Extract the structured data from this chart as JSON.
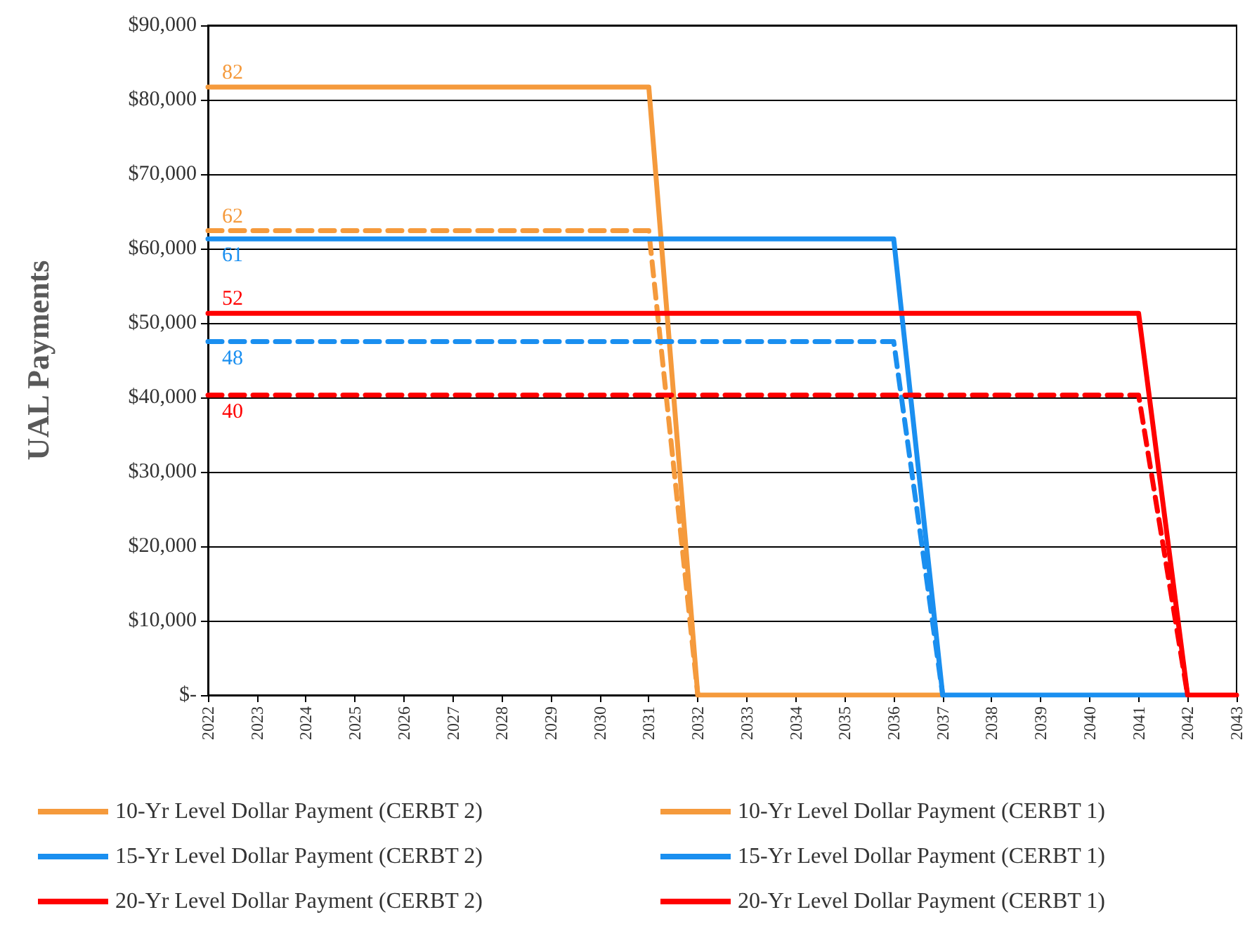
{
  "chart_data": {
    "type": "line",
    "ylabel": "UAL Payments",
    "categories": [
      "2022",
      "2023",
      "2024",
      "2025",
      "2026",
      "2027",
      "2028",
      "2029",
      "2030",
      "2031",
      "2032",
      "2033",
      "2034",
      "2035",
      "2036",
      "2037",
      "2038",
      "2039",
      "2040",
      "2041",
      "2042",
      "2043"
    ],
    "series": [
      {
        "name": "10-Yr Level Dollar Payment (CERBT 2)",
        "color": "#f59a3c",
        "line_style": "solid",
        "values": [
          81700,
          81700,
          81700,
          81700,
          81700,
          81700,
          81700,
          81700,
          81700,
          81700,
          0,
          0,
          0,
          0,
          0,
          0,
          null,
          null,
          null,
          null,
          null,
          null
        ]
      },
      {
        "name": "10-Yr Level Dollar Payment (CERBT 1)",
        "color": "#f59a3c",
        "line_style": "dashed",
        "values": [
          62400,
          62400,
          62400,
          62400,
          62400,
          62400,
          62400,
          62400,
          62400,
          62400,
          0,
          null,
          null,
          null,
          null,
          null,
          null,
          null,
          null,
          null,
          null,
          null
        ]
      },
      {
        "name": "15-Yr Level Dollar Payment (CERBT 2)",
        "color": "#1a8ff0",
        "line_style": "solid",
        "values": [
          61300,
          61300,
          61300,
          61300,
          61300,
          61300,
          61300,
          61300,
          61300,
          61300,
          61300,
          61300,
          61300,
          61300,
          61300,
          0,
          0,
          0,
          0,
          0,
          0,
          null
        ]
      },
      {
        "name": "15-Yr Level Dollar Payment (CERBT 1)",
        "color": "#1a8ff0",
        "line_style": "dashed",
        "values": [
          47500,
          47500,
          47500,
          47500,
          47500,
          47500,
          47500,
          47500,
          47500,
          47500,
          47500,
          47500,
          47500,
          47500,
          47500,
          0,
          null,
          null,
          null,
          null,
          null,
          null
        ]
      },
      {
        "name": "20-Yr Level Dollar Payment (CERBT 2)",
        "color": "#ff0000",
        "line_style": "solid",
        "values": [
          51300,
          51300,
          51300,
          51300,
          51300,
          51300,
          51300,
          51300,
          51300,
          51300,
          51300,
          51300,
          51300,
          51300,
          51300,
          51300,
          51300,
          51300,
          51300,
          51300,
          0,
          0
        ]
      },
      {
        "name": "20-Yr Level Dollar Payment (CERBT 1)",
        "color": "#ff0000",
        "line_style": "dashed",
        "values": [
          40300,
          40300,
          40300,
          40300,
          40300,
          40300,
          40300,
          40300,
          40300,
          40300,
          40300,
          40300,
          40300,
          40300,
          40300,
          40300,
          40300,
          40300,
          40300,
          40300,
          0,
          null
        ]
      }
    ],
    "annotations": [
      {
        "text": "82",
        "x": "2022",
        "y": 81700
      },
      {
        "text": "62",
        "x": "2022",
        "y": 62400
      },
      {
        "text": "61",
        "x": "2022",
        "y": 61300
      },
      {
        "text": "48",
        "x": "2022",
        "y": 47500
      },
      {
        "text": "52",
        "x": "2022",
        "y": 51300
      },
      {
        "text": "40",
        "x": "2022",
        "y": 40300
      }
    ],
    "ylim": [
      0,
      90000
    ],
    "yticks": [
      {
        "value": 0,
        "label": "$-"
      },
      {
        "value": 10000,
        "label": "$10,000"
      },
      {
        "value": 20000,
        "label": "$20,000"
      },
      {
        "value": 30000,
        "label": "$30,000"
      },
      {
        "value": 40000,
        "label": "$40,000"
      },
      {
        "value": 50000,
        "label": "$50,000"
      },
      {
        "value": 60000,
        "label": "$60,000"
      },
      {
        "value": 70000,
        "label": "$70,000"
      },
      {
        "value": 80000,
        "label": "$80,000"
      },
      {
        "value": 90000,
        "label": "$90,000"
      }
    ],
    "grid": "y",
    "legend": "bottom",
    "marker": "none"
  }
}
